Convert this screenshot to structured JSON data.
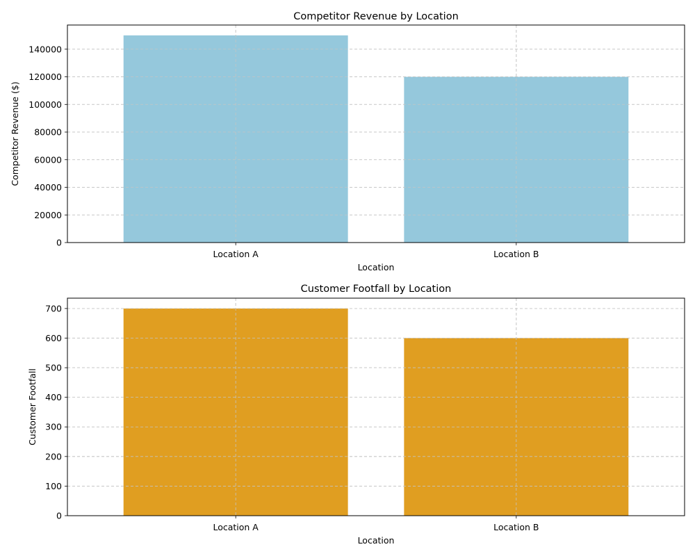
{
  "chart_data": [
    {
      "type": "bar",
      "title": "Competitor Revenue by Location",
      "xlabel": "Location",
      "ylabel": "Competitor Revenue ($)",
      "categories": [
        "Location A",
        "Location B"
      ],
      "values": [
        150000,
        120000
      ],
      "ylim": [
        0,
        157500
      ],
      "yticks": [
        0,
        20000,
        40000,
        60000,
        80000,
        100000,
        120000,
        140000
      ],
      "bar_color": "#95c8dc",
      "grid": true
    },
    {
      "type": "bar",
      "title": "Customer Footfall by Location",
      "xlabel": "Location",
      "ylabel": "Customer Footfall",
      "categories": [
        "Location A",
        "Location B"
      ],
      "values": [
        700,
        600
      ],
      "ylim": [
        0,
        735
      ],
      "yticks": [
        0,
        100,
        200,
        300,
        400,
        500,
        600,
        700
      ],
      "bar_color": "#e09e21",
      "grid": true
    }
  ]
}
